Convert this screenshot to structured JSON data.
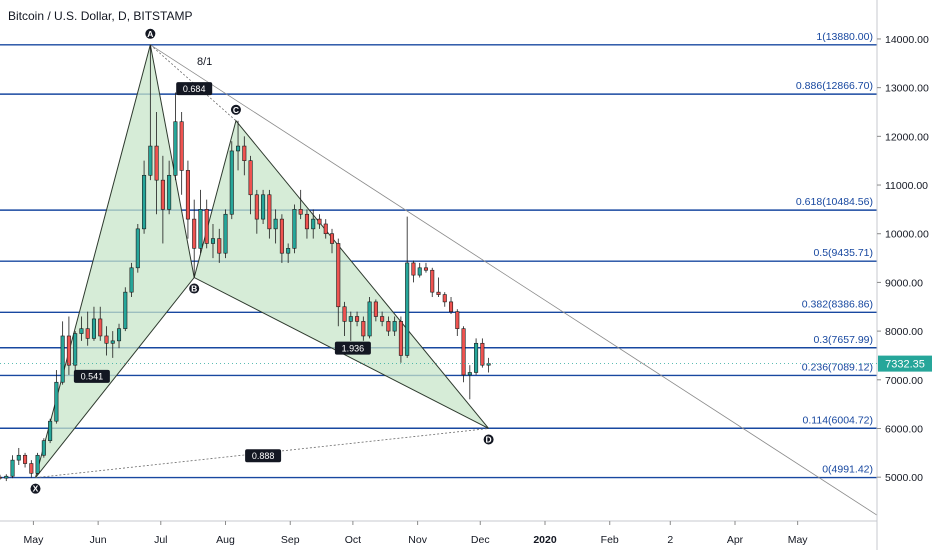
{
  "header": {
    "title": "Bitcoin / U.S. Dollar, D, BITSTAMP"
  },
  "colors": {
    "fib_line": "#1848a0",
    "pattern_fill": "#c8e6c9",
    "pattern_stroke": "#2e3a2e",
    "candle_up": "#26a69a",
    "candle_down": "#ef5350",
    "price_tag": "#26a69a",
    "trend_line": "#8a8a8a"
  },
  "chart_data": {
    "type": "candlestick",
    "yaxis": {
      "ticks": [
        5000,
        6000,
        7000,
        8000,
        9000,
        10000,
        11000,
        12000,
        13000,
        14000
      ],
      "tick_labels": [
        "5000.00",
        "6000.00",
        "7000.00",
        "8000.00",
        "9000.00",
        "10000.00",
        "11000.00",
        "12000.00",
        "13000.00",
        "14000.00"
      ],
      "range": [
        4100,
        14800
      ]
    },
    "xaxis": {
      "range": [
        "2019-04-15",
        "2020-06-08"
      ],
      "ticks": [
        {
          "date": "2019-05-01",
          "label": "May"
        },
        {
          "date": "2019-06-01",
          "label": "Jun"
        },
        {
          "date": "2019-07-01",
          "label": "Jul"
        },
        {
          "date": "2019-08-01",
          "label": "Aug"
        },
        {
          "date": "2019-09-01",
          "label": "Sep"
        },
        {
          "date": "2019-10-01",
          "label": "Oct"
        },
        {
          "date": "2019-11-01",
          "label": "Nov"
        },
        {
          "date": "2019-12-01",
          "label": "Dec"
        },
        {
          "date": "2020-01-01",
          "label": "2020"
        },
        {
          "date": "2020-02-01",
          "label": "Feb"
        },
        {
          "date": "2020-03-01",
          "label": "2"
        },
        {
          "date": "2020-04-01",
          "label": "Apr"
        },
        {
          "date": "2020-05-01",
          "label": "May"
        }
      ]
    },
    "fib_levels": [
      {
        "price": 13880.0,
        "label": "1(13880.00)"
      },
      {
        "price": 12866.7,
        "label": "0.886(12866.70)"
      },
      {
        "price": 10484.56,
        "label": "0.618(10484.56)"
      },
      {
        "price": 9435.71,
        "label": "0.5(9435.71)"
      },
      {
        "price": 8386.86,
        "label": "0.382(8386.86)"
      },
      {
        "price": 7657.99,
        "label": "0.3(7657.99)"
      },
      {
        "price": 7089.12,
        "label": "0.236(7089.12)"
      },
      {
        "price": 6004.72,
        "label": "0.114(6004.72)"
      },
      {
        "price": 4991.42,
        "label": "0(4991.42)"
      }
    ],
    "pattern_points": [
      {
        "name": "X",
        "date": "2019-05-02",
        "price": 4990
      },
      {
        "name": "A",
        "date": "2019-06-26",
        "price": 13880
      },
      {
        "name": "B",
        "date": "2019-07-17",
        "price": 9100
      },
      {
        "name": "C",
        "date": "2019-08-06",
        "price": 12320
      },
      {
        "name": "D",
        "date": "2019-12-05",
        "price": 6000
      }
    ],
    "ratios": [
      {
        "label": "0.541",
        "date": "2019-05-29",
        "price": 7070
      },
      {
        "label": "0.684",
        "date": "2019-07-17",
        "price": 12980
      },
      {
        "label": "1.936",
        "date": "2019-10-01",
        "price": 7650
      },
      {
        "label": "0.888",
        "date": "2019-08-19",
        "price": 5440
      }
    ],
    "annotation": {
      "text": "8/1",
      "date": "2019-07-22",
      "price": 13470
    },
    "trend_line": {
      "from": {
        "date": "2019-06-26",
        "price": 13880
      },
      "to": {
        "date": "2020-06-08",
        "price": 4220
      }
    },
    "last_price": {
      "value": 7332.35,
      "label": "7332.35"
    },
    "candles": [
      [
        "2019-04-15",
        5000,
        5050,
        4950,
        4980
      ],
      [
        "2019-04-18",
        4980,
        5060,
        4920,
        5020
      ],
      [
        "2019-04-21",
        5020,
        5450,
        4980,
        5350
      ],
      [
        "2019-04-24",
        5350,
        5600,
        5250,
        5450
      ],
      [
        "2019-04-27",
        5450,
        5500,
        5200,
        5280
      ],
      [
        "2019-04-30",
        5280,
        5350,
        4990,
        5080
      ],
      [
        "2019-05-03",
        5080,
        5500,
        5050,
        5450
      ],
      [
        "2019-05-06",
        5450,
        5800,
        5400,
        5750
      ],
      [
        "2019-05-09",
        5750,
        6200,
        5700,
        6150
      ],
      [
        "2019-05-12",
        6150,
        7200,
        6100,
        6950
      ],
      [
        "2019-05-15",
        6950,
        8200,
        6900,
        7900
      ],
      [
        "2019-05-18",
        7900,
        8300,
        7100,
        7300
      ],
      [
        "2019-05-21",
        7300,
        8000,
        7200,
        7950
      ],
      [
        "2019-05-24",
        7950,
        8300,
        7800,
        8050
      ],
      [
        "2019-05-27",
        8050,
        8400,
        7700,
        7850
      ],
      [
        "2019-05-30",
        7850,
        8500,
        7800,
        8250
      ],
      [
        "2019-06-02",
        8250,
        8500,
        7800,
        7900
      ],
      [
        "2019-06-05",
        7900,
        8100,
        7500,
        7750
      ],
      [
        "2019-06-08",
        7750,
        8000,
        7450,
        7800
      ],
      [
        "2019-06-11",
        7800,
        8150,
        7650,
        8050
      ],
      [
        "2019-06-14",
        8050,
        8900,
        8000,
        8800
      ],
      [
        "2019-06-17",
        8800,
        9400,
        8700,
        9300
      ],
      [
        "2019-06-20",
        9300,
        10200,
        9200,
        10100
      ],
      [
        "2019-06-23",
        10100,
        11500,
        10000,
        11200
      ],
      [
        "2019-06-26",
        11200,
        13880,
        11100,
        11800
      ],
      [
        "2019-06-29",
        11800,
        12500,
        10400,
        11100
      ],
      [
        "2019-07-02",
        11100,
        11600,
        9800,
        10500
      ],
      [
        "2019-07-05",
        10500,
        11500,
        10400,
        11200
      ],
      [
        "2019-07-08",
        11200,
        12900,
        11100,
        12300
      ],
      [
        "2019-07-11",
        12300,
        12500,
        10800,
        11300
      ],
      [
        "2019-07-14",
        11300,
        11500,
        9900,
        10300
      ],
      [
        "2019-07-17",
        10300,
        10700,
        9100,
        9700
      ],
      [
        "2019-07-20",
        9700,
        10900,
        9600,
        10500
      ],
      [
        "2019-07-23",
        10500,
        10700,
        9700,
        9800
      ],
      [
        "2019-07-26",
        9800,
        10200,
        9500,
        9900
      ],
      [
        "2019-07-29",
        9900,
        10100,
        9400,
        9600
      ],
      [
        "2019-08-01",
        9600,
        10500,
        9500,
        10400
      ],
      [
        "2019-08-04",
        10400,
        11900,
        10300,
        11700
      ],
      [
        "2019-08-07",
        11700,
        12320,
        11300,
        11800
      ],
      [
        "2019-08-10",
        11800,
        12000,
        11200,
        11500
      ],
      [
        "2019-08-13",
        11500,
        11600,
        10400,
        10800
      ],
      [
        "2019-08-16",
        10800,
        10900,
        10000,
        10300
      ],
      [
        "2019-08-19",
        10300,
        10900,
        10200,
        10800
      ],
      [
        "2019-08-22",
        10800,
        10900,
        9900,
        10100
      ],
      [
        "2019-08-25",
        10100,
        10500,
        9800,
        10300
      ],
      [
        "2019-08-28",
        10300,
        10400,
        9400,
        9600
      ],
      [
        "2019-08-31",
        9600,
        9800,
        9400,
        9700
      ],
      [
        "2019-09-03",
        9700,
        10600,
        9600,
        10500
      ],
      [
        "2019-09-06",
        10500,
        10900,
        10300,
        10400
      ],
      [
        "2019-09-09",
        10400,
        10500,
        9900,
        10100
      ],
      [
        "2019-09-12",
        10100,
        10500,
        9900,
        10300
      ],
      [
        "2019-09-15",
        10300,
        10400,
        10100,
        10200
      ],
      [
        "2019-09-18",
        10200,
        10300,
        9900,
        10000
      ],
      [
        "2019-09-21",
        10000,
        10100,
        9600,
        9800
      ],
      [
        "2019-09-24",
        9800,
        9900,
        8100,
        8500
      ],
      [
        "2019-09-27",
        8500,
        8600,
        7900,
        8200
      ],
      [
        "2019-09-30",
        8200,
        8400,
        7800,
        8300
      ],
      [
        "2019-10-03",
        8300,
        8400,
        8100,
        8200
      ],
      [
        "2019-10-06",
        8200,
        8300,
        7800,
        7900
      ],
      [
        "2019-10-09",
        7900,
        8700,
        7850,
        8600
      ],
      [
        "2019-10-12",
        8600,
        8650,
        8200,
        8300
      ],
      [
        "2019-10-15",
        8300,
        8400,
        8100,
        8200
      ],
      [
        "2019-10-18",
        8200,
        8300,
        7900,
        8000
      ],
      [
        "2019-10-21",
        8000,
        8300,
        7900,
        8200
      ],
      [
        "2019-10-24",
        8200,
        8300,
        7350,
        7500
      ],
      [
        "2019-10-27",
        7500,
        10350,
        7450,
        9400
      ],
      [
        "2019-10-30",
        9400,
        9450,
        9000,
        9150
      ],
      [
        "2019-11-02",
        9150,
        9400,
        9100,
        9300
      ],
      [
        "2019-11-05",
        9300,
        9400,
        9200,
        9250
      ],
      [
        "2019-11-08",
        9250,
        9300,
        8700,
        8800
      ],
      [
        "2019-11-11",
        8800,
        9100,
        8700,
        8750
      ],
      [
        "2019-11-14",
        8750,
        8800,
        8500,
        8600
      ],
      [
        "2019-11-17",
        8600,
        8700,
        8350,
        8400
      ],
      [
        "2019-11-20",
        8400,
        8450,
        7900,
        8050
      ],
      [
        "2019-11-23",
        8050,
        8100,
        6950,
        7100
      ],
      [
        "2019-11-26",
        7100,
        7300,
        6600,
        7150
      ],
      [
        "2019-11-29",
        7150,
        7850,
        7100,
        7750
      ],
      [
        "2019-12-02",
        7750,
        7850,
        7250,
        7300
      ],
      [
        "2019-12-05",
        7300,
        7450,
        7150,
        7332
      ]
    ]
  }
}
